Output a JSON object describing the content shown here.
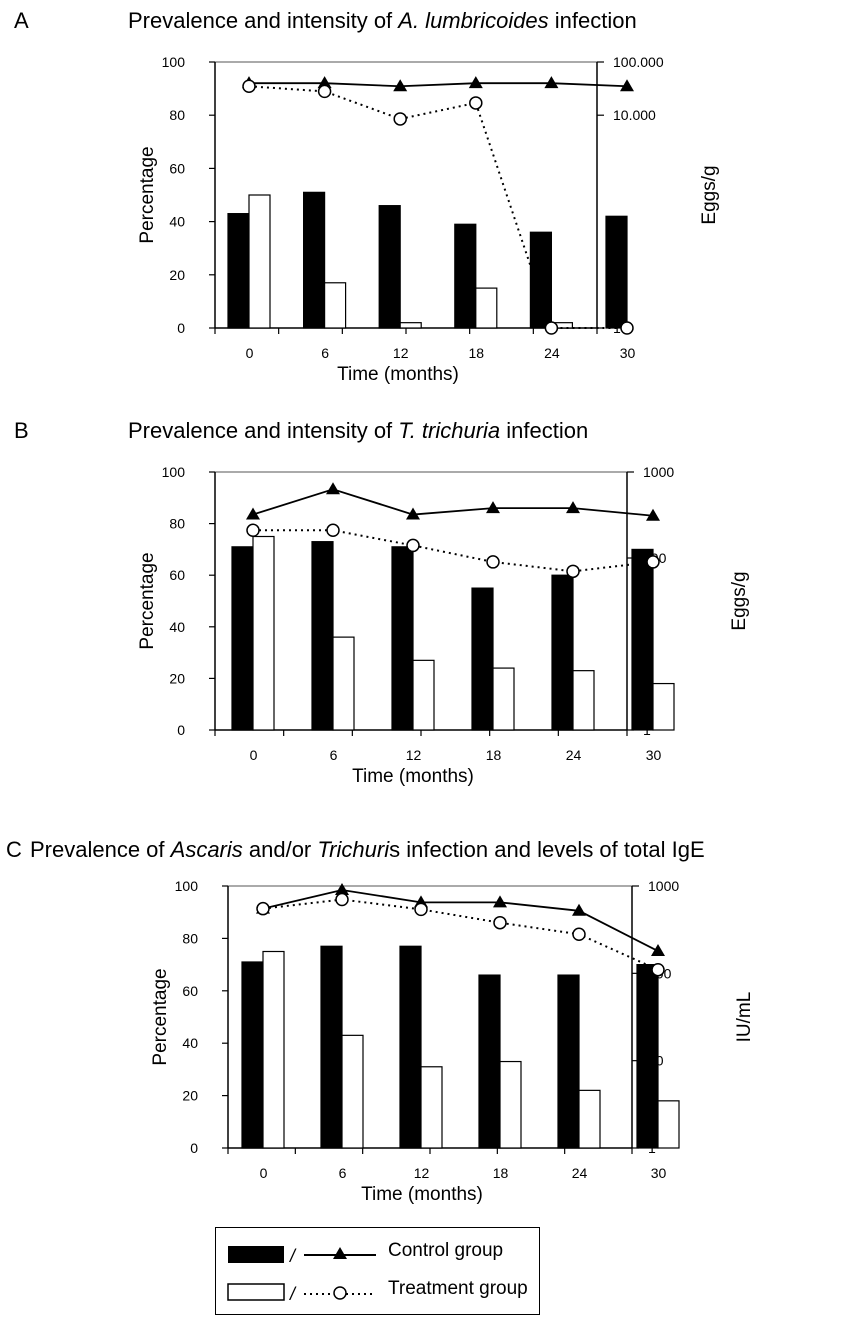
{
  "panels": [
    {
      "letter": "A",
      "title_parts": [
        {
          "text": "Prevalence and intensity of ",
          "italic": false
        },
        {
          "text": "A. lumbricoides",
          "italic": true
        },
        {
          "text": " infection",
          "italic": false
        }
      ]
    },
    {
      "letter": "B",
      "title_parts": [
        {
          "text": "Prevalence and intensity of ",
          "italic": false
        },
        {
          "text": "T. trichuria",
          "italic": true
        },
        {
          "text": " infection",
          "italic": false
        }
      ]
    },
    {
      "letter": "C",
      "title_parts": [
        {
          "text": "Prevalence of ",
          "italic": false
        },
        {
          "text": "Ascaris",
          "italic": true
        },
        {
          "text": " and/or ",
          "italic": false
        },
        {
          "text": "Trichuri",
          "italic": true
        },
        {
          "text": "s infection and levels of total IgE",
          "italic": false
        }
      ]
    }
  ],
  "legend": {
    "separator": "/",
    "control_label": "Control group",
    "treatment_label": "Treatment group",
    "control_color": "#000000",
    "treatment_color": "#ffffff"
  },
  "chart_data": [
    {
      "type": "bar",
      "categories": [
        "0",
        "6",
        "12",
        "18",
        "24",
        "30"
      ],
      "xlabel": "Time (months)",
      "ylabel": "Percentage",
      "ylim": [
        0,
        100
      ],
      "yticks": [
        "0",
        "20",
        "40",
        "60",
        "80",
        "100"
      ],
      "series": [
        {
          "name": "Control group",
          "kind": "bar",
          "axis": "left",
          "color": "#000000",
          "values": [
            43,
            51,
            46,
            39,
            36,
            42
          ]
        },
        {
          "name": "Treatment group",
          "kind": "bar",
          "axis": "left",
          "color": "#ffffff",
          "values": [
            50,
            17,
            2,
            15,
            2,
            0
          ]
        },
        {
          "name": "Control group",
          "kind": "line",
          "axis": "right",
          "marker": "triangle",
          "style": "solid",
          "values": [
            40000,
            40000,
            35000,
            40000,
            40000,
            35000
          ]
        },
        {
          "name": "Treatment group",
          "kind": "line",
          "axis": "right",
          "marker": "circle",
          "style": "dotted",
          "values": [
            35000,
            28000,
            8500,
            17000,
            1,
            1
          ]
        }
      ],
      "y2label": "Eggs/g",
      "y2scale": "log",
      "y2ticks": [
        {
          "value": 1,
          "label": "1"
        },
        {
          "value": 10000,
          "label": "10.000"
        },
        {
          "value": 100000,
          "label": "100.000"
        }
      ],
      "legend": "bottom",
      "grid": false
    },
    {
      "type": "bar",
      "categories": [
        "0",
        "6",
        "12",
        "18",
        "24",
        "30"
      ],
      "xlabel": "Time (months)",
      "ylabel": "Percentage",
      "ylim": [
        0,
        100
      ],
      "yticks": [
        "0",
        "20",
        "40",
        "60",
        "80",
        "100"
      ],
      "series": [
        {
          "name": "Control group",
          "kind": "bar",
          "axis": "left",
          "color": "#000000",
          "values": [
            71,
            73,
            71,
            55,
            60,
            70
          ]
        },
        {
          "name": "Treatment group",
          "kind": "bar",
          "axis": "left",
          "color": "#ffffff",
          "values": [
            75,
            36,
            27,
            24,
            23,
            18
          ]
        },
        {
          "name": "Control group",
          "kind": "line",
          "axis": "right",
          "marker": "triangle",
          "style": "solid",
          "values": [
            320,
            630,
            320,
            380,
            380,
            310
          ]
        },
        {
          "name": "Treatment group",
          "kind": "line",
          "axis": "right",
          "marker": "circle",
          "style": "dotted",
          "values": [
            210,
            210,
            140,
            90,
            70,
            90
          ]
        }
      ],
      "y2label": "Eggs/g",
      "y2scale": "log",
      "y2ticks": [
        {
          "value": 1,
          "label": "1"
        },
        {
          "value": 100,
          "label": "100"
        },
        {
          "value": 1000,
          "label": "1000"
        }
      ],
      "legend": "bottom",
      "grid": false
    },
    {
      "type": "bar",
      "categories": [
        "0",
        "6",
        "12",
        "18",
        "24",
        "30"
      ],
      "xlabel": "Time (months)",
      "ylabel": "Percentage",
      "ylim": [
        0,
        100
      ],
      "yticks": [
        "0",
        "20",
        "40",
        "60",
        "80",
        "100"
      ],
      "series": [
        {
          "name": "Control group",
          "kind": "bar",
          "axis": "left",
          "color": "#000000",
          "values": [
            71,
            77,
            77,
            66,
            66,
            70
          ]
        },
        {
          "name": "Treatment group",
          "kind": "bar",
          "axis": "left",
          "color": "#ffffff",
          "values": [
            75,
            43,
            31,
            33,
            22,
            18
          ]
        },
        {
          "name": "Control group",
          "kind": "line",
          "axis": "right",
          "marker": "triangle",
          "style": "solid",
          "values": [
            550,
            900,
            650,
            650,
            520,
            180
          ]
        },
        {
          "name": "Treatment group",
          "kind": "line",
          "axis": "right",
          "marker": "circle",
          "style": "dotted",
          "values": [
            550,
            700,
            540,
            380,
            280,
            110
          ]
        }
      ],
      "y2label": "IU/mL",
      "y2scale": "log",
      "y2ticks": [
        {
          "value": 1,
          "label": "1"
        },
        {
          "value": 10,
          "label": "10"
        },
        {
          "value": 100,
          "label": "100"
        },
        {
          "value": 1000,
          "label": "1000"
        }
      ],
      "legend": "bottom",
      "grid": false
    }
  ]
}
